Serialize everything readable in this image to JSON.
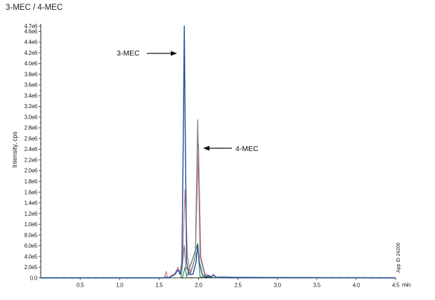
{
  "title": "3-MEC / 4-MEC",
  "chart_data": {
    "type": "line",
    "title": "3-MEC / 4-MEC",
    "xlabel": "min",
    "ylabel": "Intensity, cps",
    "xlim": [
      0,
      4.5
    ],
    "ylim": [
      0,
      4700000.0
    ],
    "x_ticks": [
      "0.5",
      "1.0",
      "1.5",
      "2.0",
      "2.5",
      "3.0",
      "3.5",
      "4.0",
      "4.5"
    ],
    "x_tick_values": [
      0.5,
      1.0,
      1.5,
      2.0,
      2.5,
      3.0,
      3.5,
      4.0,
      4.5
    ],
    "y_ticks": [
      "0.0",
      "2.0e5",
      "4.0e5",
      "6.0e5",
      "8.0e5",
      "1.0e6",
      "1.2e6",
      "1.4e6",
      "1.6e6",
      "1.8e6",
      "2.0e6",
      "2.2e6",
      "2.4e6",
      "2.6e6",
      "2.8e6",
      "3.0e6",
      "3.2e6",
      "3.4e6",
      "3.6e6",
      "3.8e6",
      "4.0e6",
      "4.2e6",
      "4.4e6",
      "4.6e6",
      "4.7e6"
    ],
    "y_tick_values": [
      0,
      200000,
      400000,
      600000,
      800000,
      1000000,
      1200000,
      1400000,
      1600000,
      1800000,
      2000000,
      2200000,
      2400000,
      2600000,
      2800000,
      3000000,
      3200000,
      3400000,
      3600000,
      3800000,
      4000000,
      4200000,
      4400000,
      4600000,
      4700000
    ],
    "grid": false,
    "series": [
      {
        "name": "3-MEC trace (blue)",
        "color": "#1f4e9c",
        "points": [
          [
            0,
            0
          ],
          [
            1.55,
            0
          ],
          [
            1.58,
            15000
          ],
          [
            1.62,
            0
          ],
          [
            1.7,
            60000
          ],
          [
            1.74,
            150000
          ],
          [
            1.77,
            60000
          ],
          [
            1.79,
            300000
          ],
          [
            1.81,
            3000000
          ],
          [
            1.82,
            4700000
          ],
          [
            1.83,
            3000000
          ],
          [
            1.85,
            300000
          ],
          [
            1.88,
            60000
          ],
          [
            1.93,
            70000
          ],
          [
            1.97,
            300000
          ],
          [
            1.99,
            620000
          ],
          [
            2.01,
            300000
          ],
          [
            2.05,
            50000
          ],
          [
            2.1,
            20000
          ],
          [
            2.13,
            40000
          ],
          [
            2.16,
            20000
          ],
          [
            2.19,
            60000
          ],
          [
            2.22,
            15000
          ],
          [
            2.4,
            10000
          ],
          [
            4.5,
            0
          ]
        ]
      },
      {
        "name": "4-MEC trace (grey)",
        "color": "#7a7a7a",
        "points": [
          [
            0,
            0
          ],
          [
            1.78,
            0
          ],
          [
            1.82,
            600000
          ],
          [
            1.84,
            200000
          ],
          [
            1.9,
            80000
          ],
          [
            1.96,
            400000
          ],
          [
            1.99,
            2950000
          ],
          [
            2.02,
            400000
          ],
          [
            2.08,
            50000
          ],
          [
            2.2,
            0
          ],
          [
            4.5,
            0
          ]
        ]
      },
      {
        "name": "4-MEC trace (red)",
        "color": "#d0787a",
        "points": [
          [
            0,
            0
          ],
          [
            1.57,
            0
          ],
          [
            1.59,
            120000
          ],
          [
            1.61,
            0
          ],
          [
            1.7,
            80000
          ],
          [
            1.74,
            200000
          ],
          [
            1.77,
            80000
          ],
          [
            1.8,
            400000
          ],
          [
            1.83,
            1650000
          ],
          [
            1.86,
            400000
          ],
          [
            1.9,
            100000
          ],
          [
            1.96,
            400000
          ],
          [
            2.0,
            2500000
          ],
          [
            2.03,
            400000
          ],
          [
            2.08,
            80000
          ],
          [
            2.2,
            0
          ],
          [
            4.5,
            0
          ]
        ]
      },
      {
        "name": "green trace",
        "color": "#2e8b57",
        "points": [
          [
            0,
            0
          ],
          [
            1.75,
            0
          ],
          [
            1.8,
            20000
          ],
          [
            1.83,
            200000
          ],
          [
            1.85,
            20000
          ],
          [
            1.99,
            640000
          ],
          [
            2.02,
            20000
          ],
          [
            2.2,
            10000
          ],
          [
            2.4,
            15000
          ],
          [
            2.42,
            0
          ],
          [
            4.5,
            0
          ]
        ]
      }
    ],
    "annotations": [
      {
        "text": "3-MEC",
        "arrow_to": [
          1.82,
          4200000.0
        ]
      },
      {
        "text": "4-MEC",
        "arrow_to": [
          2.0,
          2440000.0
        ]
      },
      {
        "text": "App ID 24206",
        "rotated": true
      }
    ]
  },
  "labels": {
    "ylabel": "Intensity, cps",
    "xunit": "min",
    "anno_3mec": "3-MEC",
    "anno_4mec": "4-MEC",
    "app_id": "App ID 24206"
  }
}
